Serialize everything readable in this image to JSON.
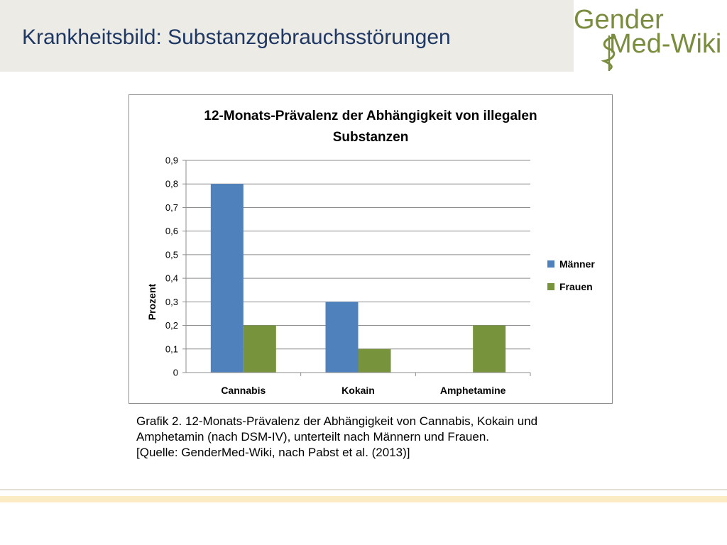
{
  "slide": {
    "title": "Krankheitsbild: Substanzgebrauchsstörungen",
    "logo_line1": "Gender",
    "logo_line2": "Med-Wiki"
  },
  "colors": {
    "title": "#1f3864",
    "title_band": "#ecebe6",
    "logo_green": "#7a8c3e",
    "series_maenner": "#4f81bd",
    "series_frauen": "#77933c"
  },
  "chart_data": {
    "type": "bar",
    "title_lines": [
      "12-Monats-Prävalenz der Abhängigkeit von illegalen",
      "Substanzen"
    ],
    "ylabel": "Prozent",
    "xlabel": "",
    "categories": [
      "Cannabis",
      "Kokain",
      "Amphetamine"
    ],
    "series": [
      {
        "name": "Männer",
        "values": [
          0.8,
          0.3,
          0
        ],
        "color": "#4f81bd"
      },
      {
        "name": "Frauen",
        "values": [
          0.2,
          0.1,
          0.2
        ],
        "color": "#77933c"
      }
    ],
    "ylim": [
      0,
      0.9
    ],
    "yticks": [
      0,
      0.1,
      0.2,
      0.3,
      0.4,
      0.5,
      0.6,
      0.7,
      0.8,
      0.9
    ],
    "ytick_labels": [
      "0",
      "0,1",
      "0,2",
      "0,3",
      "0,4",
      "0,5",
      "0,6",
      "0,7",
      "0,8",
      "0,9"
    ],
    "grid": true,
    "legend": "right"
  },
  "caption": {
    "line1": "Grafik 2. 12-Monats-Prävalenz der Abhängigkeit von Cannabis, Kokain und",
    "line2": "Amphetamin (nach DSM-IV), unterteilt nach Männern und Frauen.",
    "line3": "[Quelle: GenderMed-Wiki, nach Pabst et al. (2013)]"
  }
}
